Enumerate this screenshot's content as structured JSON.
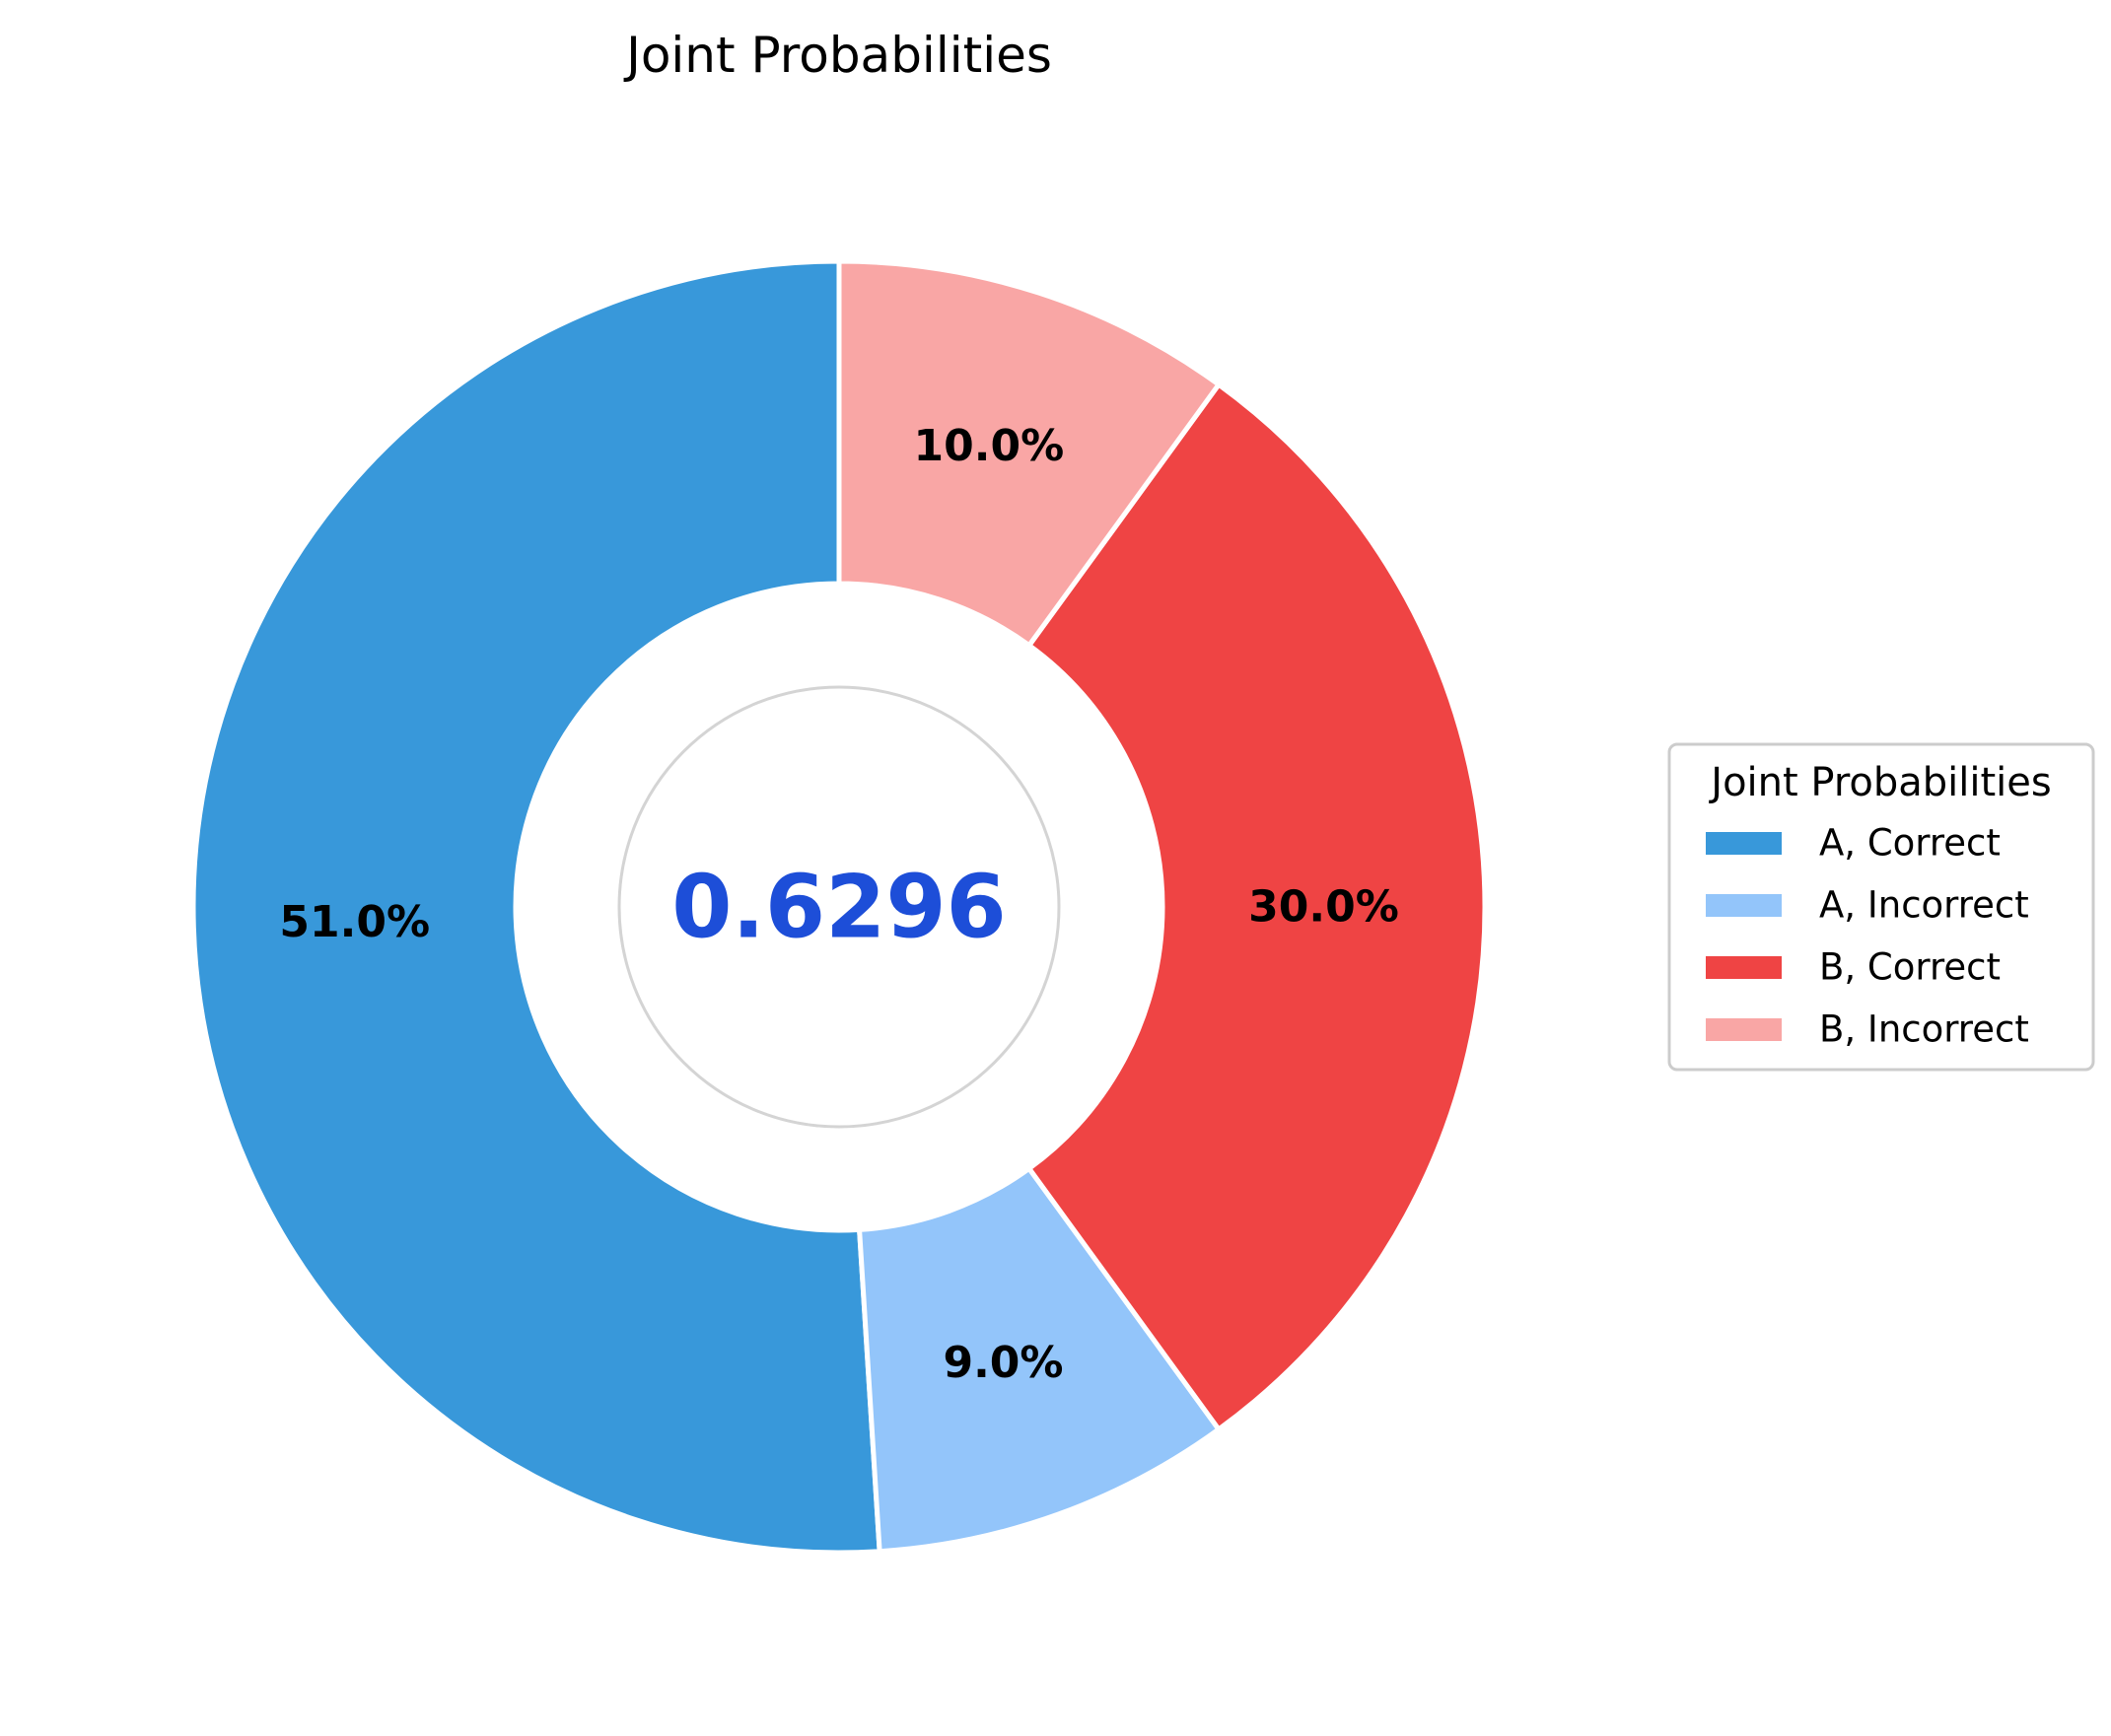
{
  "chart_data": {
    "type": "pie",
    "title": "Joint Probabilities",
    "center_value": "0.6296",
    "center_value_color": "#1d4ed8",
    "categories": [
      "A, Correct",
      "A, Incorrect",
      "B, Correct",
      "B, Incorrect"
    ],
    "values": [
      51.0,
      9.0,
      30.0,
      10.0
    ],
    "percent_labels": [
      "51.0%",
      "9.0%",
      "30.0%",
      "10.0%"
    ],
    "colors": [
      "#3898da",
      "#93c5fa",
      "#ef4444",
      "#f9a6a5"
    ],
    "style": "donut",
    "start": "top",
    "direction": "counterclockwise",
    "legend": {
      "title": "Joint Probabilities",
      "placement": "right"
    }
  }
}
